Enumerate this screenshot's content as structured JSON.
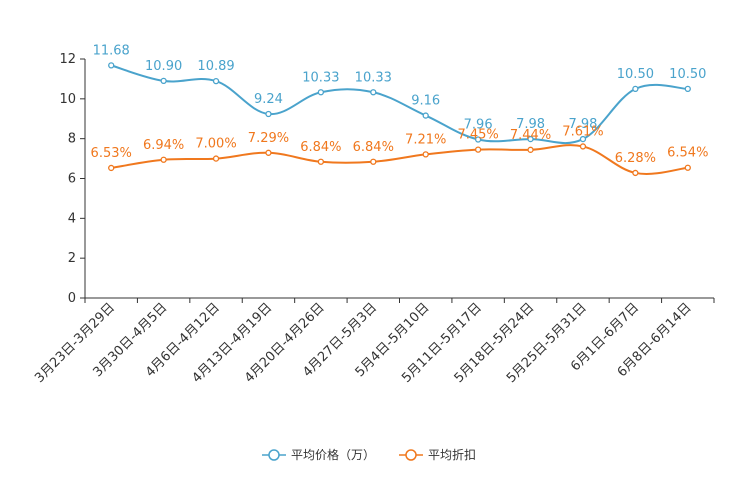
{
  "chart_data": {
    "type": "line",
    "title": "",
    "xlabel": "",
    "ylabel": "",
    "ylim": [
      0,
      12
    ],
    "yticks": [
      0,
      2,
      4,
      6,
      8,
      10,
      12
    ],
    "categories": [
      "3月23日-3月29日",
      "3月30日-4月5日",
      "4月6日-4月12日",
      "4月13日-4月19日",
      "4月20日-4月26日",
      "4月27日-5月3日",
      "5月4日-5月10日",
      "5月11日-5月17日",
      "5月18日-5月24日",
      "5月25日-5月31日",
      "6月1日-6月7日",
      "6月8日-6月14日"
    ],
    "series": [
      {
        "name": "平均价格（万）",
        "color": "#4aa3cc",
        "values": [
          11.68,
          10.9,
          10.89,
          9.24,
          10.33,
          10.33,
          9.16,
          7.96,
          7.98,
          7.98,
          10.5,
          10.5
        ],
        "labels": [
          "11.68",
          "10.90",
          "10.89",
          "9.24",
          "10.33",
          "10.33",
          "9.16",
          "7.96",
          "7.98",
          "7.98",
          "10.50",
          "10.50"
        ]
      },
      {
        "name": "平均折扣",
        "color": "#f0781e",
        "values": [
          6.53,
          6.94,
          7.0,
          7.29,
          6.84,
          6.84,
          7.21,
          7.45,
          7.44,
          7.61,
          6.28,
          6.54
        ],
        "labels": [
          "6.53%",
          "6.94%",
          "7.00%",
          "7.29%",
          "6.84%",
          "6.84%",
          "7.21%",
          "7.45%",
          "7.44%",
          "7.61%",
          "6.28%",
          "6.54%"
        ]
      }
    ],
    "legend_position": "bottom-center",
    "grid": false
  }
}
